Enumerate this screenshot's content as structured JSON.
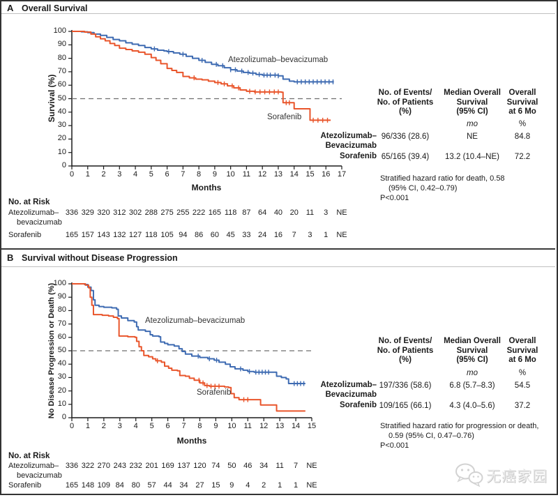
{
  "colors": {
    "atezo": "#3e6bb2",
    "sorafenib": "#e9552b",
    "dashed": "#6e6e6e",
    "axis": "#1a1a1a",
    "watermark": "#d9d9d9"
  },
  "panels": [
    {
      "letter": "A",
      "title": "Overall Survival",
      "ylabel": "Survival (%)",
      "xlabel": "Months",
      "curve_label_atezo": "Atezolizumab–bevacizumab",
      "curve_label_sorafenib": "Sorafenib",
      "table": {
        "header_col1": "No. of Events/\nNo. of Patients\n(%)",
        "header_col2": "Median Overall\nSurvival\n(95% CI)",
        "header_col3": "Overall\nSurvival\nat 6 Mo",
        "unit_col2": "mo",
        "unit_col3": "%",
        "rows": [
          {
            "label": "Atezolizumab–\nBevacizumab",
            "events": "96/336 (28.6)",
            "median": "NE",
            "at6mo": "84.8"
          },
          {
            "label": "Sorafenib",
            "events": "65/165 (39.4)",
            "median": "13.2 (10.4–NE)",
            "at6mo": "72.2"
          }
        ],
        "hazard_lines": [
          "Stratified hazard ratio for death, 0.58",
          "(95% CI, 0.42–0.79)",
          "P<0.001"
        ]
      },
      "risk": {
        "title": "No. at Risk",
        "rows": [
          {
            "label_line1": "Atezolizumab–",
            "label_line2": "bevacizumab",
            "values": [
              "336",
              "329",
              "320",
              "312",
              "302",
              "288",
              "275",
              "255",
              "222",
              "165",
              "118",
              "87",
              "64",
              "40",
              "20",
              "11",
              "3",
              "NE"
            ]
          },
          {
            "label_line1": "Sorafenib",
            "label_line2": "",
            "values": [
              "165",
              "157",
              "143",
              "132",
              "127",
              "118",
              "105",
              "94",
              "86",
              "60",
              "45",
              "33",
              "24",
              "16",
              "7",
              "3",
              "1",
              "NE"
            ]
          }
        ]
      }
    },
    {
      "letter": "B",
      "title": "Survival without Disease Progression",
      "ylabel": "No Disease Progression or Death (%)",
      "xlabel": "Months",
      "curve_label_atezo": "Atezolizumab–bevacizumab",
      "curve_label_sorafenib": "Sorafenib",
      "table": {
        "header_col1": "No. of Events/\nNo. of Patients\n(%)",
        "header_col2": "Median Overall\nSurvival\n(95% CI)",
        "header_col3": "Overall\nSurvival\nat 6 Mo",
        "unit_col2": "mo",
        "unit_col3": "%",
        "rows": [
          {
            "label": "Atezolizumab–\nBevacizumab",
            "events": "197/336 (58.6)",
            "median": "6.8 (5.7–8.3)",
            "at6mo": "54.5"
          },
          {
            "label": "Sorafenib",
            "events": "109/165 (66.1)",
            "median": "4.3 (4.0–5.6)",
            "at6mo": "37.2"
          }
        ],
        "hazard_lines": [
          "Stratified hazard ratio for progression or death,",
          "0.59 (95% CI, 0.47–0.76)",
          "P<0.001"
        ]
      },
      "risk": {
        "title": "No. at Risk",
        "rows": [
          {
            "label_line1": "Atezolizumab–",
            "label_line2": "bevacizumab",
            "values": [
              "336",
              "322",
              "270",
              "243",
              "232",
              "201",
              "169",
              "137",
              "120",
              "74",
              "50",
              "46",
              "34",
              "11",
              "7",
              "NE"
            ]
          },
          {
            "label_line1": "Sorafenib",
            "label_line2": "",
            "values": [
              "165",
              "148",
              "109",
              "84",
              "80",
              "57",
              "44",
              "34",
              "27",
              "15",
              "9",
              "4",
              "2",
              "1",
              "1",
              "NE"
            ]
          }
        ]
      }
    }
  ],
  "watermark": {
    "text": "无癌家园",
    "icon": "wechat-icon"
  },
  "chart_data": [
    {
      "type": "line",
      "title": "Overall Survival",
      "xlabel": "Months",
      "ylabel": "Survival (%)",
      "xlim": [
        0,
        17
      ],
      "ylim": [
        0,
        100
      ],
      "x_ticks": [
        0,
        1,
        2,
        3,
        4,
        5,
        6,
        7,
        8,
        9,
        10,
        11,
        12,
        13,
        14,
        15,
        16,
        17
      ],
      "y_ticks": [
        0,
        10,
        20,
        30,
        40,
        50,
        60,
        70,
        80,
        90,
        100
      ],
      "reference_line_y": 50,
      "grid": false,
      "legend_position": "inline-labels",
      "series": [
        {
          "name": "Atezolizumab–bevacizumab",
          "color": "#3e6bb2",
          "steps": [
            [
              0,
              100
            ],
            [
              0.6,
              99.7
            ],
            [
              1,
              99.1
            ],
            [
              1.4,
              98
            ],
            [
              1.8,
              97
            ],
            [
              2.2,
              95.5
            ],
            [
              2.6,
              94
            ],
            [
              3,
              93
            ],
            [
              3.4,
              91.5
            ],
            [
              3.8,
              90.5
            ],
            [
              4.2,
              89.5
            ],
            [
              4.6,
              88
            ],
            [
              5,
              87
            ],
            [
              5.4,
              86
            ],
            [
              5.8,
              85.5
            ],
            [
              6,
              85
            ],
            [
              6.4,
              84
            ],
            [
              6.8,
              83
            ],
            [
              7.2,
              81.5
            ],
            [
              7.6,
              80
            ],
            [
              8,
              78.5
            ],
            [
              8.4,
              77
            ],
            [
              8.8,
              75.5
            ],
            [
              9.2,
              74.5
            ],
            [
              9.6,
              73
            ],
            [
              10,
              71.5
            ],
            [
              10.4,
              70.5
            ],
            [
              10.8,
              69.5
            ],
            [
              11.2,
              69
            ],
            [
              11.6,
              68
            ],
            [
              12,
              67.5
            ],
            [
              12.6,
              67.5
            ],
            [
              13,
              67
            ],
            [
              13.3,
              64.5
            ],
            [
              13.7,
              63
            ],
            [
              14,
              62.5
            ],
            [
              16.5,
              62.5
            ]
          ],
          "censor_x": [
            5.2,
            6.1,
            7.0,
            8.2,
            9.1,
            9.5,
            10.0,
            10.3,
            10.7,
            11.1,
            11.4,
            11.8,
            12.1,
            12.3,
            12.5,
            12.8,
            13.0,
            14.2,
            14.45,
            14.7,
            14.95,
            15.2,
            15.45,
            15.7,
            15.95,
            16.2,
            16.45
          ]
        },
        {
          "name": "Sorafenib",
          "color": "#e9552b",
          "steps": [
            [
              0,
              100
            ],
            [
              0.8,
              99.5
            ],
            [
              1.2,
              98
            ],
            [
              1.5,
              96
            ],
            [
              1.8,
              94.5
            ],
            [
              2.1,
              93
            ],
            [
              2.4,
              91
            ],
            [
              2.7,
              89.5
            ],
            [
              3,
              87.5
            ],
            [
              3.4,
              86.5
            ],
            [
              3.8,
              85.5
            ],
            [
              4.2,
              84.5
            ],
            [
              4.6,
              83
            ],
            [
              5,
              80.5
            ],
            [
              5.3,
              78.5
            ],
            [
              5.6,
              76
            ],
            [
              6,
              72.5
            ],
            [
              6.3,
              71
            ],
            [
              6.6,
              69.5
            ],
            [
              7,
              66.5
            ],
            [
              7.4,
              65.5
            ],
            [
              7.8,
              64.5
            ],
            [
              8.2,
              64
            ],
            [
              8.6,
              63
            ],
            [
              9,
              62
            ],
            [
              9.4,
              61
            ],
            [
              9.8,
              59.5
            ],
            [
              10.2,
              58
            ],
            [
              10.6,
              56.5
            ],
            [
              11,
              55.5
            ],
            [
              11.5,
              55
            ],
            [
              13.2,
              54.8
            ],
            [
              13.3,
              47
            ],
            [
              13.9,
              47
            ],
            [
              14,
              42.5
            ],
            [
              14.9,
              42.5
            ],
            [
              15,
              34
            ],
            [
              16.3,
              34
            ]
          ],
          "censor_x": [
            7.7,
            9.2,
            9.6,
            10.1,
            10.5,
            11.2,
            11.55,
            11.85,
            12.15,
            12.45,
            12.75,
            13.0,
            13.5,
            13.7,
            15.2,
            15.5,
            15.8,
            16.1
          ]
        }
      ]
    },
    {
      "type": "line",
      "title": "Survival without Disease Progression",
      "xlabel": "Months",
      "ylabel": "No Disease Progression or Death (%)",
      "xlim": [
        0,
        15
      ],
      "ylim": [
        0,
        100
      ],
      "x_ticks": [
        0,
        1,
        2,
        3,
        4,
        5,
        6,
        7,
        8,
        9,
        10,
        11,
        12,
        13,
        14,
        15
      ],
      "y_ticks": [
        0,
        10,
        20,
        30,
        40,
        50,
        60,
        70,
        80,
        90,
        100
      ],
      "reference_line_y": 50,
      "grid": false,
      "legend_position": "inline-labels",
      "series": [
        {
          "name": "Atezolizumab–bevacizumab",
          "color": "#3e6bb2",
          "steps": [
            [
              0,
              100
            ],
            [
              0.8,
              99.5
            ],
            [
              1,
              97.5
            ],
            [
              1.2,
              95
            ],
            [
              1.35,
              88
            ],
            [
              1.45,
              84
            ],
            [
              1.7,
              83
            ],
            [
              2,
              82.5
            ],
            [
              2.5,
              82
            ],
            [
              2.8,
              81
            ],
            [
              2.9,
              76
            ],
            [
              3.1,
              74.5
            ],
            [
              3.5,
              72.5
            ],
            [
              3.9,
              71.5
            ],
            [
              4.05,
              68
            ],
            [
              4.15,
              65.5
            ],
            [
              4.6,
              64.5
            ],
            [
              4.9,
              62
            ],
            [
              5.05,
              61
            ],
            [
              5.45,
              60.5
            ],
            [
              5.55,
              56.5
            ],
            [
              5.8,
              55.5
            ],
            [
              6,
              54.5
            ],
            [
              6.4,
              53.5
            ],
            [
              6.7,
              51.5
            ],
            [
              6.9,
              49.5
            ],
            [
              7.1,
              47.5
            ],
            [
              7.5,
              46
            ],
            [
              8,
              45
            ],
            [
              8.5,
              44
            ],
            [
              8.9,
              43
            ],
            [
              9.2,
              41.5
            ],
            [
              9.6,
              40
            ],
            [
              9.9,
              38
            ],
            [
              10.2,
              36.5
            ],
            [
              10.7,
              35.5
            ],
            [
              11,
              34.5
            ],
            [
              11.4,
              34
            ],
            [
              12.5,
              34
            ],
            [
              12.8,
              31
            ],
            [
              13.1,
              30
            ],
            [
              13.4,
              29
            ],
            [
              13.55,
              25.5
            ],
            [
              14.6,
              25.5
            ]
          ],
          "censor_x": [
            7.9,
            8.6,
            9.05,
            10.55,
            11.1,
            11.5,
            11.7,
            11.9,
            12.1,
            12.3,
            13.9,
            14.1,
            14.3,
            14.5
          ]
        },
        {
          "name": "Sorafenib",
          "color": "#e9552b",
          "steps": [
            [
              0,
              100
            ],
            [
              0.85,
              99
            ],
            [
              1.05,
              97
            ],
            [
              1.15,
              90
            ],
            [
              1.25,
              84
            ],
            [
              1.35,
              77
            ],
            [
              1.9,
              76.5
            ],
            [
              2.3,
              76
            ],
            [
              2.6,
              75
            ],
            [
              2.85,
              74
            ],
            [
              2.95,
              61
            ],
            [
              3.5,
              60.5
            ],
            [
              3.95,
              60
            ],
            [
              4.05,
              57
            ],
            [
              4.2,
              53
            ],
            [
              4.35,
              50
            ],
            [
              4.5,
              46.5
            ],
            [
              4.8,
              45.5
            ],
            [
              5.05,
              44
            ],
            [
              5.25,
              42.5
            ],
            [
              5.6,
              41.5
            ],
            [
              5.8,
              38.5
            ],
            [
              6.05,
              37
            ],
            [
              6.25,
              35.5
            ],
            [
              6.6,
              35
            ],
            [
              6.75,
              31.5
            ],
            [
              7.1,
              31
            ],
            [
              7.35,
              29.5
            ],
            [
              7.65,
              28
            ],
            [
              8,
              26
            ],
            [
              8.3,
              24
            ],
            [
              8.6,
              23.5
            ],
            [
              9.55,
              23
            ],
            [
              9.8,
              22.5
            ],
            [
              9.95,
              18
            ],
            [
              10.15,
              15
            ],
            [
              10.45,
              13.5
            ],
            [
              11.65,
              13.5
            ],
            [
              11.8,
              9.5
            ],
            [
              12.65,
              9.5
            ],
            [
              12.8,
              5
            ],
            [
              14.6,
              5
            ]
          ],
          "censor_x": [
            5.35,
            7.95,
            8.2,
            8.45,
            8.7,
            8.95,
            9.2,
            10.75,
            11.0
          ]
        }
      ]
    }
  ]
}
